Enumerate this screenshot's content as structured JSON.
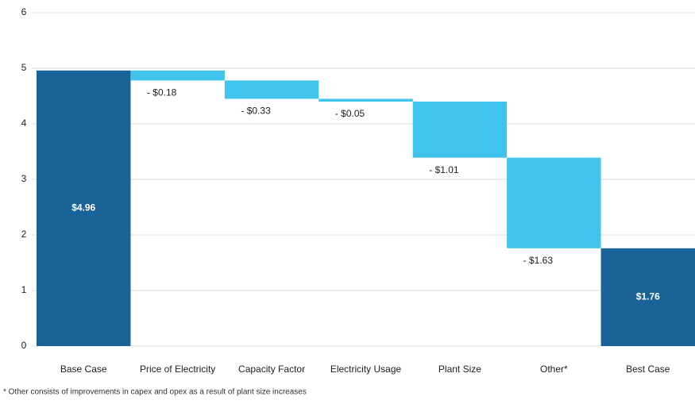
{
  "chart_data": {
    "type": "waterfall",
    "categories": [
      "Base Case",
      "Price of Electricity",
      "Capacity Factor",
      "Electricity Usage",
      "Plant Size",
      "Other*",
      "Best Case"
    ],
    "values": [
      4.96,
      -0.18,
      -0.33,
      -0.05,
      -1.01,
      -1.63,
      1.76
    ],
    "value_labels": [
      "$4.96",
      "- $0.18",
      "- $0.33",
      "- $0.05",
      "- $1.01",
      "- $1.63",
      "$1.76"
    ],
    "total_color": "#1a6399",
    "delta_color": "#40c4ec",
    "ylim": [
      0,
      6
    ],
    "yticks": [
      0,
      1,
      2,
      3,
      4,
      5,
      6
    ],
    "grid": true,
    "note": "* Other consists of improvements in capex and opex as a result of plant size increases"
  }
}
